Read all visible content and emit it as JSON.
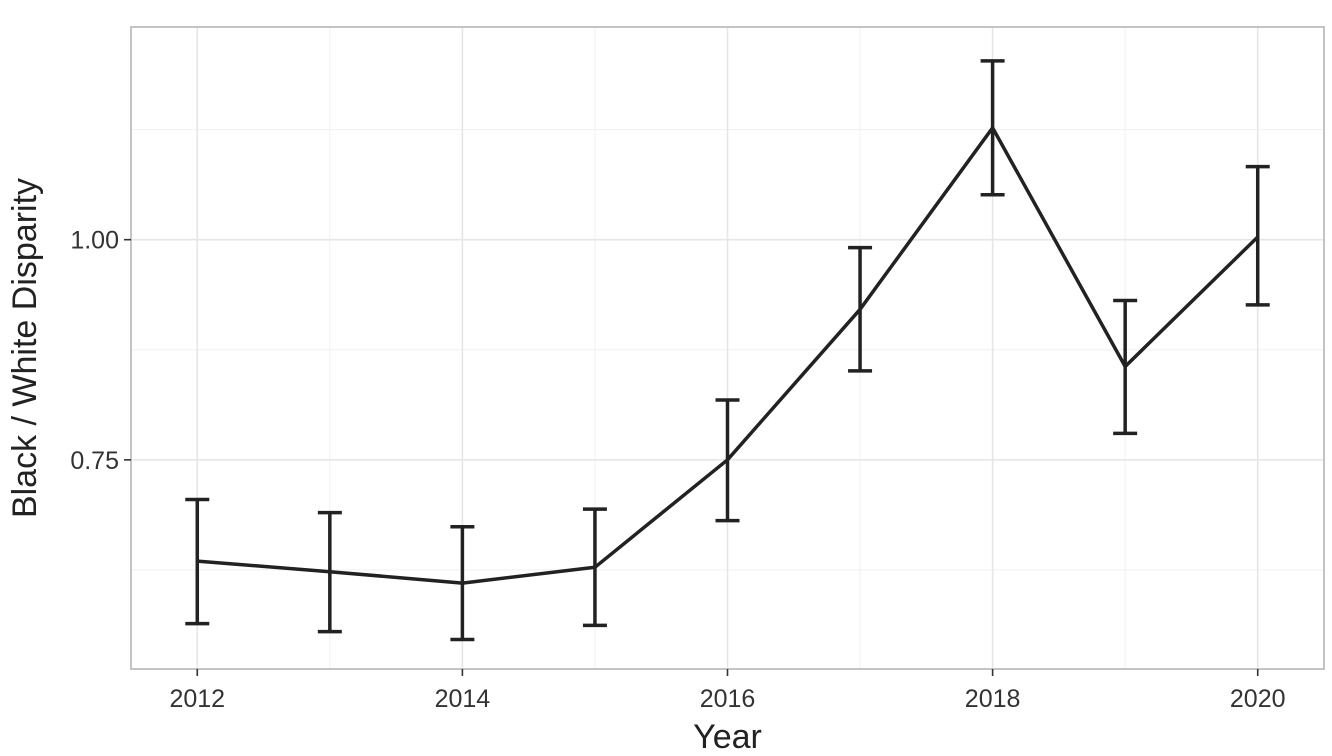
{
  "chart_data": {
    "type": "line",
    "title": "",
    "xlabel": "Year",
    "ylabel": "Black / White Disparity",
    "x": [
      2012,
      2013,
      2014,
      2015,
      2016,
      2017,
      2018,
      2019,
      2020
    ],
    "series": [
      {
        "values": [
          0.635,
          0.623,
          0.61,
          0.628,
          0.75,
          0.921,
          1.127,
          0.856,
          1.003
        ],
        "lower": [
          0.564,
          0.555,
          0.546,
          0.562,
          0.681,
          0.851,
          1.051,
          0.78,
          0.926
        ],
        "upper": [
          0.705,
          0.69,
          0.674,
          0.694,
          0.818,
          0.991,
          1.203,
          0.931,
          1.083
        ]
      }
    ],
    "xlim": [
      2011.5,
      2020.5
    ],
    "ylim": [
      0.5125,
      1.2415
    ],
    "xticks": [
      2012,
      2014,
      2016,
      2018,
      2020
    ],
    "xtick_labels": [
      "2012",
      "2014",
      "2016",
      "2018",
      "2020"
    ],
    "yticks": [
      0.75,
      1.0
    ],
    "ytick_labels": [
      "0.75",
      "1.00"
    ],
    "grid": true,
    "legend": "none",
    "colors": {
      "line": "#222222",
      "grid": "#e6e6e6",
      "border": "#c4c4c4"
    }
  }
}
